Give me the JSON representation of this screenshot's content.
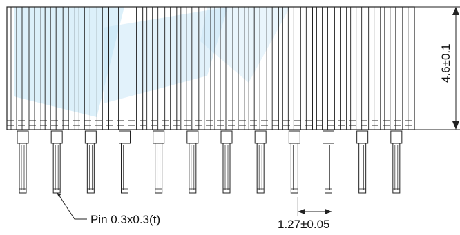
{
  "drawing": {
    "pin_count": 12,
    "watermark_color": "#bfe3f6",
    "line_color": "#222222",
    "labels": {
      "pin": "Pin 0.3x0.3(t)",
      "pitch": "1.27±0.05",
      "height": "4.6±0.1"
    }
  }
}
